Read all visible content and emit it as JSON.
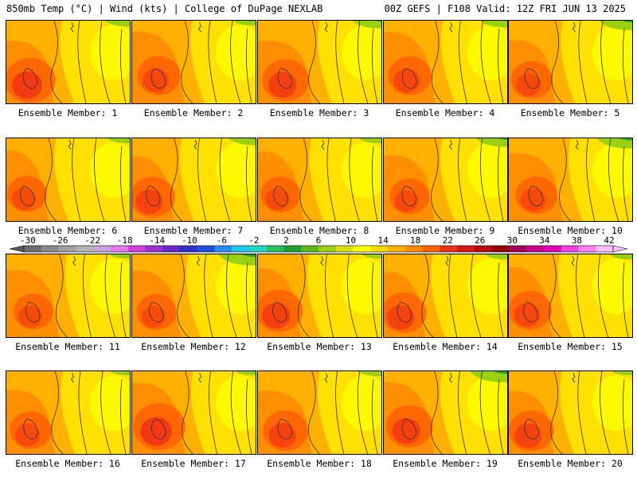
{
  "header": {
    "left": "850mb Temp (°C) | Wind (kts) | College of DuPage NEXLAB",
    "right": "00Z GEFS | F108 Valid: 12Z FRI JUN 13 2025"
  },
  "members": [
    {
      "label": "Ensemble Member: 1",
      "hot": 0.8,
      "cool": 0.15
    },
    {
      "label": "Ensemble Member: 2",
      "hot": 0.6,
      "cool": 0.1
    },
    {
      "label": "Ensemble Member: 3",
      "hot": 0.7,
      "cool": 0.25
    },
    {
      "label": "Ensemble Member: 4",
      "hot": 0.6,
      "cool": 0.2
    },
    {
      "label": "Ensemble Member: 5",
      "hot": 0.55,
      "cool": 0.35
    },
    {
      "label": "Ensemble Member: 6",
      "hot": 0.5,
      "cool": 0.1
    },
    {
      "label": "Ensemble Member: 7",
      "hot": 0.65,
      "cool": 0.2
    },
    {
      "label": "Ensemble Member: 8",
      "hot": 0.5,
      "cool": 0.1
    },
    {
      "label": "Ensemble Member: 9",
      "hot": 0.5,
      "cool": 0.3
    },
    {
      "label": "Ensemble Member: 10",
      "hot": 0.55,
      "cool": 0.4
    },
    {
      "label": "Ensemble Member: 11",
      "hot": 0.5,
      "cool": 0.05
    },
    {
      "label": "Ensemble Member: 12",
      "hot": 0.5,
      "cool": 0.45
    },
    {
      "label": "Ensemble Member: 13",
      "hot": 0.7,
      "cool": 0.05
    },
    {
      "label": "Ensemble Member: 14",
      "hot": 0.65,
      "cool": 0.1
    },
    {
      "label": "Ensemble Member: 15",
      "hot": 0.6,
      "cool": 0.1
    },
    {
      "label": "Ensemble Member: 16",
      "hot": 0.55,
      "cool": 0.05
    },
    {
      "label": "Ensemble Member: 17",
      "hot": 0.85,
      "cool": 0.05
    },
    {
      "label": "Ensemble Member: 18",
      "hot": 0.65,
      "cool": 0.1
    },
    {
      "label": "Ensemble Member: 19",
      "hot": 0.7,
      "cool": 0.45
    },
    {
      "label": "Ensemble Member: 20",
      "hot": 0.65,
      "cool": 0.05
    }
  ],
  "colorbar": {
    "labels": [
      "-30",
      "-26",
      "-22",
      "-18",
      "-14",
      "-10",
      "-6",
      "-2",
      "2",
      "6",
      "10",
      "14",
      "18",
      "22",
      "26",
      "30",
      "34",
      "38",
      "42"
    ],
    "colors": [
      "#6e6e6e",
      "#8a8a8a",
      "#a0a0a0",
      "#b4b4b4",
      "#c8a0dc",
      "#e07ae8",
      "#d040d8",
      "#9a30d0",
      "#6a28c8",
      "#3030c8",
      "#2050e0",
      "#2890f0",
      "#20c8f0",
      "#20d8c8",
      "#28c060",
      "#20a030",
      "#5cb818",
      "#9ad010",
      "#d8e010",
      "#ffff00",
      "#ffd800",
      "#ffb000",
      "#ff8c00",
      "#ff6000",
      "#f03018",
      "#d81818",
      "#b80c0c",
      "#980000",
      "#a0005a",
      "#c8008c",
      "#e000b8",
      "#f040e0",
      "#ff80f0",
      "#ffc0ff"
    ]
  }
}
